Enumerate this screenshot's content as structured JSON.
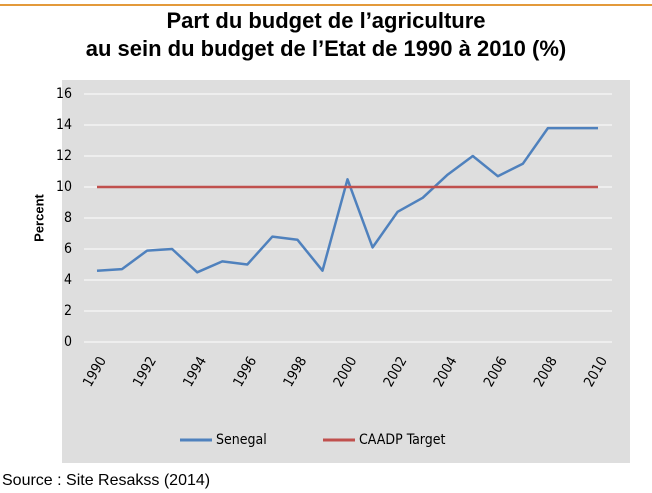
{
  "chart_data": {
    "type": "line",
    "title": "Part du budget de l’agriculture",
    "subtitle": "au sein du budget de l’Etat de 1990 à 2010 (%)",
    "ylabel": "Percent",
    "source": "Source : Site Resakss (2014)",
    "x": [
      1990,
      1991,
      1992,
      1993,
      1994,
      1995,
      1996,
      1997,
      1998,
      1999,
      2000,
      2001,
      2002,
      2003,
      2004,
      2005,
      2006,
      2007,
      2008,
      2009,
      2010
    ],
    "series": [
      {
        "name": "Senegal",
        "color": "#4f81bd",
        "values": [
          4.6,
          4.7,
          5.9,
          6.0,
          4.5,
          5.2,
          5.0,
          6.8,
          6.6,
          4.6,
          10.5,
          6.1,
          8.4,
          9.3,
          10.8,
          12.0,
          10.7,
          11.5,
          13.8,
          13.8,
          13.8
        ]
      },
      {
        "name": "CAADP Target",
        "color": "#c0504d",
        "values": [
          10,
          10,
          10,
          10,
          10,
          10,
          10,
          10,
          10,
          10,
          10,
          10,
          10,
          10,
          10,
          10,
          10,
          10,
          10,
          10,
          10
        ]
      }
    ],
    "xlim": [
      1990,
      2010
    ],
    "xticks": [
      1990,
      1992,
      1994,
      1996,
      1998,
      2000,
      2002,
      2004,
      2006,
      2008,
      2010
    ],
    "ylim": [
      0,
      16
    ],
    "yticks": [
      0,
      2,
      4,
      6,
      8,
      10,
      12,
      14,
      16
    ],
    "grid": true,
    "legend": "bottom"
  }
}
